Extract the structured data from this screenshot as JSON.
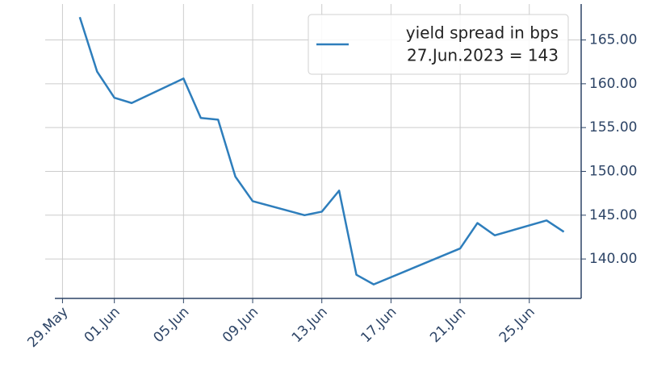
{
  "chart_data": {
    "type": "line",
    "x": [
      "05-30",
      "05-31",
      "06-01",
      "06-02",
      "06-05",
      "06-06",
      "06-07",
      "06-08",
      "06-09",
      "06-12",
      "06-13",
      "06-14",
      "06-15",
      "06-16",
      "06-21",
      "06-22",
      "06-23",
      "06-26",
      "06-27"
    ],
    "series": [
      {
        "name": "yield spread in bps",
        "color": "#2e7ebc",
        "values": [
          167.6,
          161.4,
          158.4,
          157.8,
          160.6,
          156.1,
          155.9,
          149.4,
          146.6,
          145.0,
          145.4,
          147.8,
          138.2,
          137.1,
          141.2,
          144.1,
          142.7,
          144.4,
          143.1
        ]
      }
    ],
    "legend_note": "27.Jun.2023 = 143",
    "legend": "upper right",
    "xlim": [
      "05-28",
      "06-28"
    ],
    "xticks": [
      {
        "value": "05-29",
        "label": "29.May"
      },
      {
        "value": "06-01",
        "label": "01.Jun"
      },
      {
        "value": "06-05",
        "label": "05.Jun"
      },
      {
        "value": "06-09",
        "label": "09.Jun"
      },
      {
        "value": "06-13",
        "label": "13.Jun"
      },
      {
        "value": "06-17",
        "label": "17.Jun"
      },
      {
        "value": "06-21",
        "label": "21.Jun"
      },
      {
        "value": "06-25",
        "label": "25.Jun"
      }
    ],
    "ylim": [
      135.5,
      169.1
    ],
    "yticks": [
      {
        "value": 140,
        "label": "140.00"
      },
      {
        "value": 145,
        "label": "145.00"
      },
      {
        "value": 150,
        "label": "150.00"
      },
      {
        "value": 155,
        "label": "155.00"
      },
      {
        "value": 160,
        "label": "160.00"
      },
      {
        "value": 165,
        "label": "165.00"
      }
    ],
    "grid": true,
    "y_axis_side": "right"
  }
}
